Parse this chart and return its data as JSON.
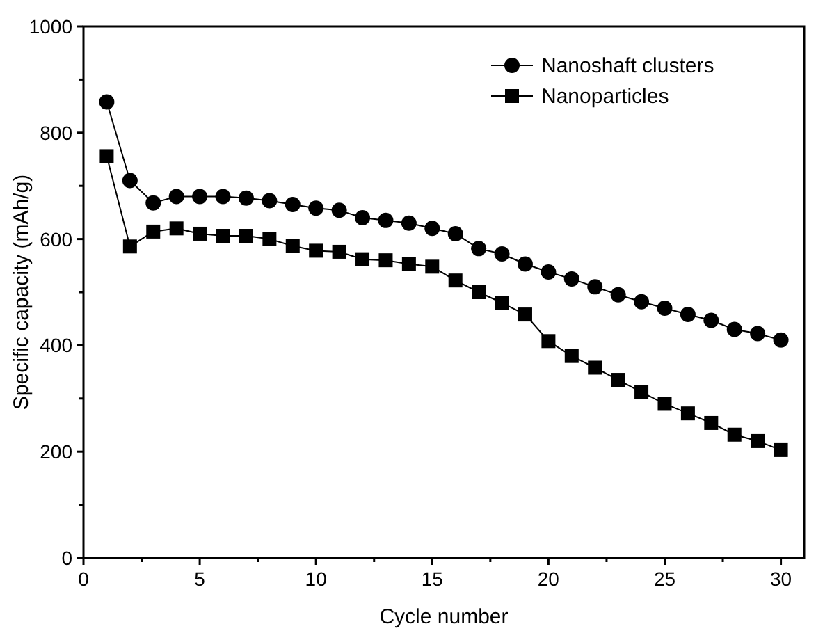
{
  "chart_data": {
    "type": "line",
    "xlabel": "Cycle number",
    "ylabel": "Specific capacity (mAh/g)",
    "x": [
      1,
      2,
      3,
      4,
      5,
      6,
      7,
      8,
      9,
      10,
      11,
      12,
      13,
      14,
      15,
      16,
      17,
      18,
      19,
      20,
      21,
      22,
      23,
      24,
      25,
      26,
      27,
      28,
      29,
      30
    ],
    "xlim": [
      0,
      31
    ],
    "ylim": [
      0,
      1000
    ],
    "xticks": [
      0,
      {
        "value": 2.5,
        "label": null
      },
      5,
      {
        "value": 7.5,
        "label": null
      },
      10,
      {
        "value": 12.5,
        "label": null
      },
      15,
      {
        "value": 17.5,
        "label": null
      },
      20,
      {
        "value": 22.5,
        "label": null
      },
      25,
      {
        "value": 27.5,
        "label": null
      },
      30
    ],
    "yticks": [
      0,
      {
        "value": 100,
        "label": null
      },
      200,
      {
        "value": 300,
        "label": null
      },
      400,
      {
        "value": 500,
        "label": null
      },
      600,
      {
        "value": 700,
        "label": null
      },
      800,
      {
        "value": 900,
        "label": null
      },
      1000
    ],
    "legend": "top right",
    "line_style": "solid",
    "grid": false,
    "series": [
      {
        "name": "Nanoshaft clusters",
        "color": "#000000",
        "marker": "circle",
        "values": [
          858,
          710,
          668,
          680,
          680,
          680,
          677,
          672,
          665,
          658,
          654,
          640,
          635,
          630,
          620,
          610,
          582,
          572,
          553,
          538,
          525,
          510,
          495,
          482,
          470,
          458,
          447,
          430,
          422,
          410
        ]
      },
      {
        "name": "Nanoparticles",
        "color": "#000000",
        "marker": "square",
        "values": [
          756,
          586,
          614,
          620,
          610,
          606,
          606,
          600,
          587,
          578,
          576,
          562,
          560,
          553,
          548,
          522,
          500,
          480,
          458,
          408,
          380,
          358,
          335,
          312,
          290,
          272,
          254,
          232,
          220,
          203
        ]
      }
    ]
  }
}
